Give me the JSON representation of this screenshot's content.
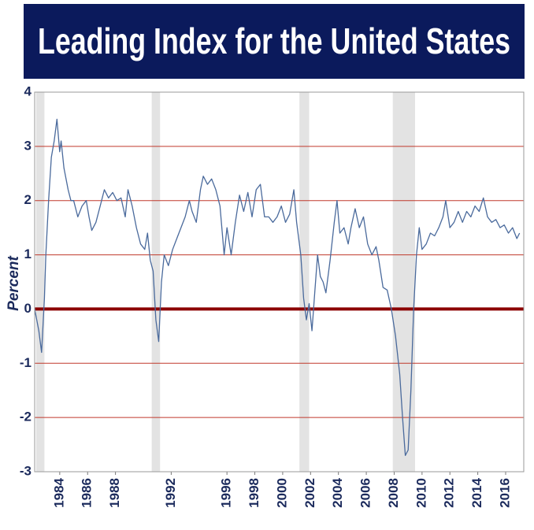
{
  "chart_data": {
    "type": "line",
    "title": "Leading Index for the United States",
    "y_label": "Percent",
    "color": "#4a6a9c",
    "grid": true,
    "recessions": [
      [
        1982.3,
        1982.9
      ],
      [
        1990.6,
        1991.2
      ],
      [
        2001.2,
        2001.9
      ],
      [
        2007.9,
        2009.5
      ]
    ],
    "xlim": [
      1982.2,
      2017.3
    ],
    "ylim": [
      -3,
      4
    ],
    "xticks": [
      1984,
      1986,
      1988,
      1992,
      1996,
      1998,
      2000,
      2002,
      2004,
      2006,
      2008,
      2010,
      2012,
      2014,
      2016
    ],
    "yticks": [
      -3,
      -2,
      -1,
      0,
      1,
      2,
      3,
      4
    ],
    "x": [
      1982.2,
      1982.5,
      1982.7,
      1982.9,
      1983.0,
      1983.2,
      1983.4,
      1983.6,
      1983.8,
      1984.0,
      1984.1,
      1984.3,
      1984.6,
      1984.8,
      1985.0,
      1985.3,
      1985.6,
      1985.9,
      1986.1,
      1986.3,
      1986.6,
      1986.9,
      1987.2,
      1987.5,
      1987.8,
      1988.1,
      1988.4,
      1988.7,
      1988.9,
      1989.2,
      1989.5,
      1989.8,
      1990.1,
      1990.3,
      1990.5,
      1990.7,
      1990.9,
      1991.1,
      1991.3,
      1991.5,
      1991.8,
      1992.1,
      1992.4,
      1992.7,
      1993.0,
      1993.3,
      1993.5,
      1993.8,
      1994.1,
      1994.3,
      1994.6,
      1994.9,
      1995.2,
      1995.5,
      1995.8,
      1996.0,
      1996.3,
      1996.6,
      1996.9,
      1997.2,
      1997.5,
      1997.8,
      1998.1,
      1998.4,
      1998.7,
      1999.0,
      1999.3,
      1999.6,
      1999.9,
      2000.2,
      2000.5,
      2000.8,
      2001.0,
      2001.3,
      2001.5,
      2001.7,
      2001.9,
      2002.1,
      2002.3,
      2002.5,
      2002.7,
      2002.9,
      2003.1,
      2003.4,
      2003.7,
      2003.9,
      2004.1,
      2004.4,
      2004.7,
      2004.9,
      2005.2,
      2005.5,
      2005.8,
      2006.1,
      2006.4,
      2006.7,
      2006.9,
      2007.2,
      2007.5,
      2007.8,
      2008.1,
      2008.4,
      2008.6,
      2008.8,
      2009.0,
      2009.2,
      2009.4,
      2009.6,
      2009.8,
      2010.0,
      2010.3,
      2010.6,
      2010.9,
      2011.2,
      2011.5,
      2011.7,
      2012.0,
      2012.3,
      2012.6,
      2012.9,
      2013.2,
      2013.5,
      2013.8,
      2014.1,
      2014.4,
      2014.7,
      2015.0,
      2015.3,
      2015.6,
      2015.9,
      2016.2,
      2016.5,
      2016.8,
      2017.0
    ],
    "values": [
      0.0,
      -0.4,
      -0.8,
      0.2,
      1.0,
      2.0,
      2.8,
      3.1,
      3.5,
      2.9,
      3.1,
      2.6,
      2.2,
      2.0,
      2.0,
      1.7,
      1.9,
      2.0,
      1.7,
      1.45,
      1.6,
      1.9,
      2.2,
      2.05,
      2.15,
      2.0,
      2.05,
      1.7,
      2.2,
      1.9,
      1.5,
      1.2,
      1.1,
      1.4,
      0.9,
      0.7,
      -0.2,
      -0.6,
      0.5,
      1.0,
      0.8,
      1.1,
      1.3,
      1.5,
      1.7,
      2.0,
      1.8,
      1.6,
      2.2,
      2.45,
      2.3,
      2.4,
      2.2,
      1.9,
      1.0,
      1.5,
      1.0,
      1.6,
      2.1,
      1.8,
      2.15,
      1.7,
      2.2,
      2.3,
      1.7,
      1.7,
      1.6,
      1.7,
      1.9,
      1.6,
      1.75,
      2.2,
      1.6,
      1.0,
      0.2,
      -0.2,
      0.1,
      -0.4,
      0.3,
      1.0,
      0.6,
      0.5,
      0.3,
      0.9,
      1.6,
      2.0,
      1.4,
      1.5,
      1.2,
      1.5,
      1.85,
      1.5,
      1.7,
      1.2,
      1.0,
      1.15,
      0.9,
      0.4,
      0.35,
      0.0,
      -0.5,
      -1.2,
      -2.0,
      -2.7,
      -2.6,
      -1.5,
      0.0,
      1.0,
      1.5,
      1.1,
      1.2,
      1.4,
      1.35,
      1.5,
      1.7,
      2.0,
      1.5,
      1.6,
      1.8,
      1.6,
      1.8,
      1.7,
      1.9,
      1.8,
      2.05,
      1.7,
      1.6,
      1.65,
      1.5,
      1.55,
      1.4,
      1.5,
      1.3,
      1.4
    ]
  }
}
